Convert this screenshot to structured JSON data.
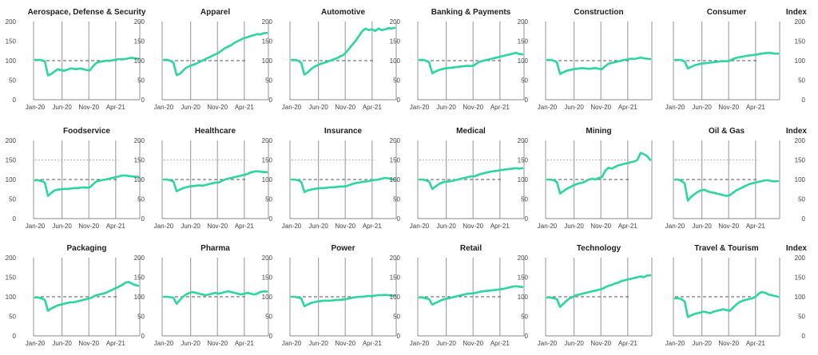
{
  "colors": {
    "series": "#2bd6a0",
    "vline": "#a6a6a6",
    "axis": "#888888",
    "dash": "#555555"
  },
  "index_label": "Index",
  "chart_data": [
    {
      "type": "line",
      "title": "Aerospace, Defense & Security",
      "xticks": [
        "Jan-20",
        "Jun-20",
        "Nov-20",
        "Apr-21"
      ],
      "ylim": [
        0,
        200
      ],
      "yticks": [
        0,
        50,
        100,
        150,
        200
      ],
      "show_left_ticks": true,
      "show_right_ticks": false,
      "show_index": false,
      "reference_lines": [
        100
      ],
      "series": [
        {
          "values": [
            102,
            102,
            101,
            98,
            62,
            66,
            72,
            78,
            76,
            74,
            77,
            80,
            79,
            78,
            80,
            78,
            76,
            75,
            86,
            94,
            97,
            98,
            100,
            99,
            101,
            102,
            104,
            103,
            104,
            106,
            107,
            106,
            105
          ]
        }
      ]
    },
    {
      "type": "line",
      "title": "Apparel",
      "xticks": [
        "Jan-20",
        "Jun-20",
        "Nov-20",
        "Apr-21"
      ],
      "ylim": [
        0,
        200
      ],
      "yticks": [
        0,
        50,
        100,
        150,
        200
      ],
      "show_left_ticks": true,
      "show_right_ticks": false,
      "show_index": false,
      "reference_lines": [
        100
      ],
      "series": [
        {
          "values": [
            102,
            102,
            100,
            95,
            63,
            66,
            75,
            82,
            86,
            89,
            92,
            96,
            100,
            104,
            108,
            112,
            116,
            120,
            126,
            132,
            136,
            140,
            146,
            150,
            154,
            158,
            160,
            163,
            165,
            168,
            167,
            170,
            171
          ]
        }
      ]
    },
    {
      "type": "line",
      "title": "Automotive",
      "xticks": [
        "Jan-20",
        "Jun-20",
        "Nov-20",
        "Apr-21"
      ],
      "ylim": [
        0,
        200
      ],
      "yticks": [
        0,
        50,
        100,
        150,
        200
      ],
      "show_left_ticks": true,
      "show_right_ticks": false,
      "show_index": false,
      "reference_lines": [
        100
      ],
      "series": [
        {
          "values": [
            102,
            102,
            100,
            94,
            64,
            70,
            78,
            84,
            88,
            92,
            94,
            97,
            100,
            103,
            106,
            110,
            114,
            122,
            132,
            142,
            152,
            164,
            176,
            182,
            178,
            180,
            176,
            182,
            178,
            180,
            183,
            182,
            184
          ]
        }
      ]
    },
    {
      "type": "line",
      "title": "Banking & Payments",
      "xticks": [
        "Jan-20",
        "Jun-20",
        "Nov-20",
        "Apr-21"
      ],
      "ylim": [
        0,
        200
      ],
      "yticks": [
        0,
        50,
        100,
        150,
        200
      ],
      "show_left_ticks": true,
      "show_right_ticks": false,
      "show_index": false,
      "reference_lines": [
        100
      ],
      "series": [
        {
          "values": [
            102,
            102,
            100,
            96,
            68,
            72,
            76,
            78,
            80,
            81,
            82,
            83,
            84,
            85,
            86,
            87,
            86,
            88,
            94,
            98,
            100,
            102,
            104,
            106,
            108,
            110,
            112,
            114,
            116,
            118,
            120,
            117,
            116
          ]
        }
      ]
    },
    {
      "type": "line",
      "title": "Construction",
      "xticks": [
        "Jan-20",
        "Jun-20",
        "Nov-20",
        "Apr-21"
      ],
      "ylim": [
        0,
        200
      ],
      "yticks": [
        0,
        50,
        100,
        150,
        200
      ],
      "show_left_ticks": true,
      "show_right_ticks": false,
      "show_index": false,
      "reference_lines": [
        100
      ],
      "series": [
        {
          "values": [
            102,
            102,
            100,
            96,
            66,
            70,
            74,
            76,
            78,
            79,
            80,
            81,
            80,
            79,
            80,
            81,
            79,
            78,
            86,
            92,
            94,
            96,
            98,
            100,
            102,
            103,
            105,
            104,
            106,
            108,
            106,
            105,
            104
          ]
        }
      ]
    },
    {
      "type": "line",
      "title": "Consumer",
      "xticks": [
        "Jan-20",
        "Jun-20",
        "Nov-20",
        "Apr-21"
      ],
      "ylim": [
        0,
        200
      ],
      "yticks": [
        0,
        50,
        100,
        150,
        200
      ],
      "show_left_ticks": false,
      "show_right_ticks": true,
      "show_index": true,
      "reference_lines": [
        100
      ],
      "series": [
        {
          "values": [
            102,
            102,
            101,
            98,
            80,
            84,
            88,
            90,
            92,
            93,
            94,
            95,
            96,
            97,
            98,
            99,
            98,
            100,
            104,
            107,
            109,
            110,
            112,
            113,
            114,
            115,
            117,
            118,
            119,
            120,
            119,
            118,
            118
          ]
        }
      ]
    },
    {
      "type": "line",
      "title": "Foodservice",
      "xticks": [
        "Jan-20",
        "Jun-20",
        "Nov-20",
        "Apr-21"
      ],
      "ylim": [
        0,
        200
      ],
      "yticks": [
        0,
        50,
        100,
        150,
        200
      ],
      "show_left_ticks": true,
      "show_right_ticks": false,
      "show_index": false,
      "reference_lines": [
        100,
        150
      ],
      "series": [
        {
          "values": [
            98,
            98,
            96,
            92,
            58,
            66,
            72,
            74,
            75,
            76,
            76,
            77,
            78,
            78,
            79,
            80,
            79,
            80,
            88,
            95,
            97,
            99,
            100,
            102,
            104,
            106,
            108,
            110,
            110,
            109,
            108,
            107,
            107
          ]
        }
      ]
    },
    {
      "type": "line",
      "title": "Healthcare",
      "xticks": [
        "Jan-20",
        "Jun-20",
        "Nov-20",
        "Apr-21"
      ],
      "ylim": [
        0,
        200
      ],
      "yticks": [
        0,
        50,
        100,
        150,
        200
      ],
      "show_left_ticks": true,
      "show_right_ticks": false,
      "show_index": false,
      "reference_lines": [
        100,
        150
      ],
      "series": [
        {
          "values": [
            100,
            100,
            98,
            95,
            70,
            74,
            78,
            80,
            82,
            83,
            84,
            85,
            84,
            86,
            88,
            90,
            92,
            92,
            96,
            100,
            102,
            104,
            106,
            108,
            110,
            112,
            114,
            118,
            120,
            121,
            120,
            119,
            119
          ]
        }
      ]
    },
    {
      "type": "line",
      "title": "Insurance",
      "xticks": [
        "Jan-20",
        "Jun-20",
        "Nov-20",
        "Apr-21"
      ],
      "ylim": [
        0,
        200
      ],
      "yticks": [
        0,
        50,
        100,
        150,
        200
      ],
      "show_left_ticks": true,
      "show_right_ticks": false,
      "show_index": false,
      "reference_lines": [
        100,
        150
      ],
      "series": [
        {
          "values": [
            100,
            100,
            98,
            94,
            68,
            72,
            74,
            76,
            77,
            78,
            78,
            79,
            80,
            80,
            81,
            82,
            82,
            83,
            86,
            89,
            91,
            92,
            94,
            95,
            96,
            98,
            99,
            100,
            102,
            104,
            103,
            101,
            100
          ]
        }
      ]
    },
    {
      "type": "line",
      "title": "Medical",
      "xticks": [
        "Jan-20",
        "Jun-20",
        "Nov-20",
        "Apr-21"
      ],
      "ylim": [
        0,
        200
      ],
      "yticks": [
        0,
        50,
        100,
        150,
        200
      ],
      "show_left_ticks": true,
      "show_right_ticks": false,
      "show_index": false,
      "reference_lines": [
        100,
        150
      ],
      "series": [
        {
          "values": [
            100,
            100,
            98,
            95,
            76,
            82,
            88,
            92,
            94,
            95,
            96,
            98,
            100,
            102,
            104,
            106,
            108,
            108,
            111,
            114,
            116,
            118,
            120,
            121,
            122,
            124,
            125,
            126,
            127,
            128,
            129,
            128,
            129
          ]
        }
      ]
    },
    {
      "type": "line",
      "title": "Mining",
      "xticks": [
        "Jan-20",
        "Jun-20",
        "Nov-20",
        "Apr-21"
      ],
      "ylim": [
        0,
        200
      ],
      "yticks": [
        0,
        50,
        100,
        150,
        200
      ],
      "show_left_ticks": true,
      "show_right_ticks": false,
      "show_index": false,
      "reference_lines": [
        100,
        150
      ],
      "series": [
        {
          "values": [
            100,
            100,
            98,
            94,
            64,
            70,
            76,
            80,
            84,
            88,
            90,
            92,
            96,
            100,
            102,
            100,
            104,
            106,
            122,
            130,
            128,
            132,
            136,
            138,
            140,
            142,
            144,
            146,
            150,
            168,
            165,
            160,
            150
          ]
        }
      ]
    },
    {
      "type": "line",
      "title": "Oil & Gas",
      "xticks": [
        "Jan-20",
        "Jun-20",
        "Nov-20",
        "Apr-21"
      ],
      "ylim": [
        0,
        200
      ],
      "yticks": [
        0,
        50,
        100,
        150,
        200
      ],
      "show_left_ticks": false,
      "show_right_ticks": true,
      "show_index": true,
      "reference_lines": [
        100,
        150
      ],
      "series": [
        {
          "values": [
            100,
            100,
            96,
            90,
            46,
            56,
            62,
            68,
            72,
            74,
            70,
            68,
            66,
            64,
            62,
            60,
            58,
            60,
            66,
            72,
            76,
            80,
            84,
            88,
            90,
            92,
            94,
            96,
            98,
            98,
            96,
            95,
            96
          ]
        }
      ]
    },
    {
      "type": "line",
      "title": "Packaging",
      "xticks": [
        "Jan-20",
        "Jun-20",
        "Nov-20",
        "Apr-21"
      ],
      "ylim": [
        0,
        200
      ],
      "yticks": [
        0,
        50,
        100,
        150,
        200
      ],
      "show_left_ticks": true,
      "show_right_ticks": false,
      "show_index": false,
      "reference_lines": [
        100
      ],
      "series": [
        {
          "values": [
            98,
            98,
            96,
            92,
            64,
            70,
            74,
            78,
            80,
            82,
            84,
            86,
            86,
            88,
            90,
            92,
            94,
            96,
            100,
            104,
            106,
            108,
            110,
            114,
            118,
            122,
            126,
            130,
            136,
            138,
            134,
            130,
            128
          ]
        }
      ]
    },
    {
      "type": "line",
      "title": "Pharma",
      "xticks": [
        "Jan-20",
        "Jun-20",
        "Nov-20",
        "Apr-21"
      ],
      "ylim": [
        0,
        200
      ],
      "yticks": [
        0,
        50,
        100,
        150,
        200
      ],
      "show_left_ticks": true,
      "show_right_ticks": false,
      "show_index": false,
      "reference_lines": [
        100
      ],
      "series": [
        {
          "values": [
            100,
            100,
            99,
            98,
            82,
            92,
            100,
            106,
            110,
            112,
            110,
            108,
            106,
            104,
            106,
            108,
            110,
            108,
            110,
            112,
            114,
            112,
            110,
            108,
            106,
            108,
            110,
            108,
            106,
            108,
            112,
            114,
            113
          ]
        }
      ]
    },
    {
      "type": "line",
      "title": "Power",
      "xticks": [
        "Jan-20",
        "Jun-20",
        "Nov-20",
        "Apr-21"
      ],
      "ylim": [
        0,
        200
      ],
      "yticks": [
        0,
        50,
        100,
        150,
        200
      ],
      "show_left_ticks": true,
      "show_right_ticks": false,
      "show_index": false,
      "reference_lines": [
        100
      ],
      "series": [
        {
          "values": [
            100,
            100,
            98,
            96,
            76,
            80,
            84,
            86,
            88,
            89,
            90,
            90,
            90,
            91,
            92,
            92,
            93,
            94,
            96,
            98,
            99,
            100,
            100,
            101,
            102,
            102,
            103,
            104,
            104,
            105,
            104,
            103,
            103
          ]
        }
      ]
    },
    {
      "type": "line",
      "title": "Retail",
      "xticks": [
        "Jan-20",
        "Jun-20",
        "Nov-20",
        "Apr-21"
      ],
      "ylim": [
        0,
        200
      ],
      "yticks": [
        0,
        50,
        100,
        150,
        200
      ],
      "show_left_ticks": true,
      "show_right_ticks": false,
      "show_index": false,
      "reference_lines": [
        100
      ],
      "series": [
        {
          "values": [
            98,
            98,
            96,
            94,
            80,
            84,
            88,
            92,
            94,
            96,
            98,
            100,
            102,
            104,
            106,
            108,
            108,
            109,
            111,
            113,
            114,
            115,
            116,
            117,
            118,
            119,
            120,
            122,
            124,
            126,
            127,
            126,
            125
          ]
        }
      ]
    },
    {
      "type": "line",
      "title": "Technology",
      "xticks": [
        "Jan-20",
        "Jun-20",
        "Nov-20",
        "Apr-21"
      ],
      "ylim": [
        0,
        200
      ],
      "yticks": [
        0,
        50,
        100,
        150,
        200
      ],
      "show_left_ticks": true,
      "show_right_ticks": false,
      "show_index": false,
      "reference_lines": [
        100
      ],
      "series": [
        {
          "values": [
            98,
            98,
            96,
            94,
            74,
            82,
            90,
            96,
            100,
            104,
            106,
            108,
            110,
            112,
            114,
            116,
            118,
            120,
            124,
            128,
            130,
            134,
            136,
            140,
            142,
            144,
            146,
            148,
            150,
            152,
            150,
            154,
            155
          ]
        }
      ]
    },
    {
      "type": "line",
      "title": "Travel & Tourism",
      "xticks": [
        "Jan-20",
        "Jun-20",
        "Nov-20",
        "Apr-21"
      ],
      "ylim": [
        0,
        200
      ],
      "yticks": [
        0,
        50,
        100,
        150,
        200
      ],
      "show_left_ticks": false,
      "show_right_ticks": true,
      "show_index": true,
      "reference_lines": [
        100
      ],
      "series": [
        {
          "values": [
            96,
            96,
            94,
            88,
            48,
            52,
            56,
            58,
            60,
            62,
            60,
            58,
            62,
            64,
            66,
            68,
            66,
            64,
            72,
            80,
            86,
            90,
            92,
            94,
            96,
            100,
            108,
            112,
            110,
            106,
            104,
            102,
            100
          ]
        }
      ]
    }
  ]
}
